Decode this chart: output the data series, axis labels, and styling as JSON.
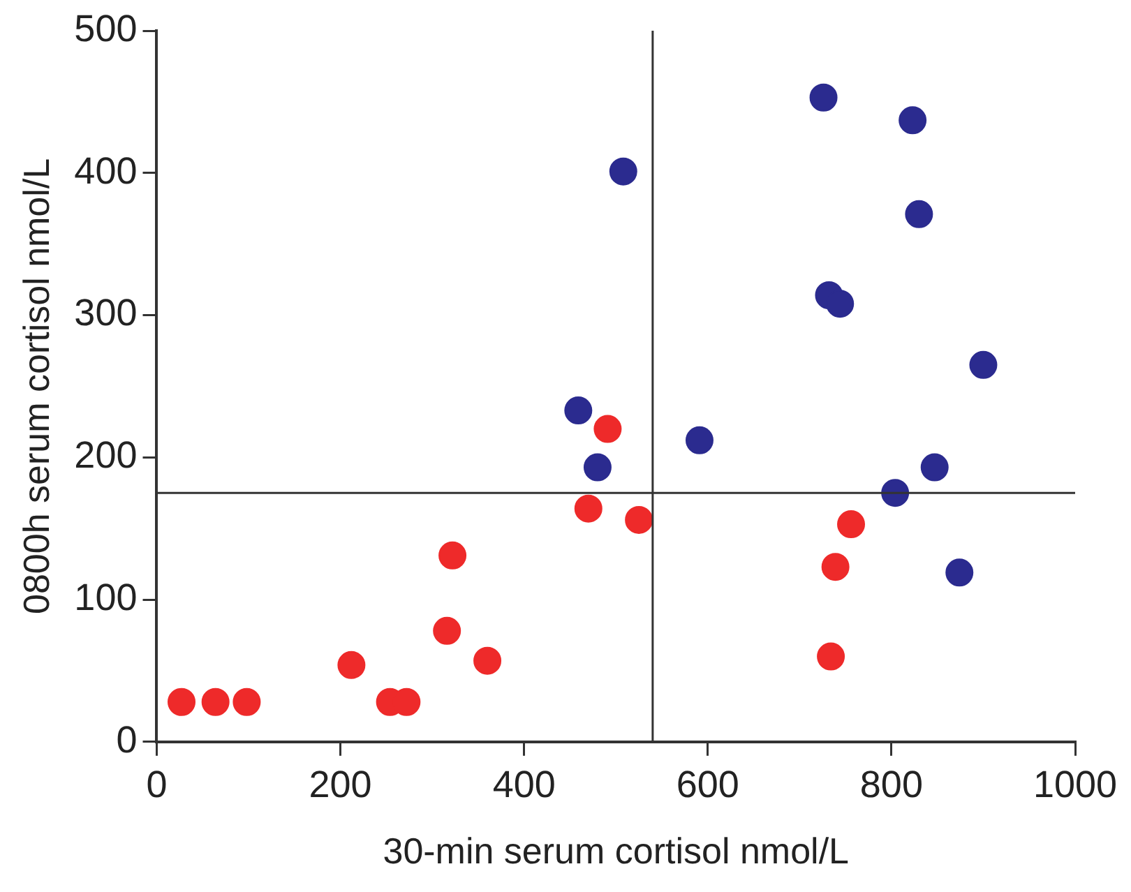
{
  "chart_data": {
    "type": "scatter",
    "xlabel": "30-min serum cortisol nmol/L",
    "ylabel": "0800h serum cortisol nmol/L",
    "xlim": [
      0,
      1000
    ],
    "xticks": [
      0,
      200,
      400,
      600,
      800,
      1000
    ],
    "ylim": [
      0,
      500
    ],
    "yticks": [
      0,
      100,
      200,
      300,
      400,
      500
    ],
    "grid": false,
    "legend": false,
    "marker": "circle",
    "series": [
      {
        "color": "#ee2a2a",
        "x": [
          27,
          64,
          98,
          212,
          254,
          272,
          360,
          316,
          322,
          470,
          525,
          491,
          756,
          739,
          734
        ],
        "values": [
          28,
          28,
          28,
          54,
          28,
          28,
          57,
          78,
          131,
          164,
          156,
          220,
          153,
          123,
          60
        ]
      },
      {
        "color": "#2b2b8f",
        "x": [
          508,
          459,
          480,
          591,
          726,
          823,
          830,
          732,
          744,
          900,
          847,
          804,
          874
        ],
        "values": [
          401,
          233,
          193,
          212,
          453,
          437,
          371,
          314,
          308,
          265,
          193,
          175,
          119
        ]
      }
    ],
    "ref_lines": [
      {
        "axis": "x",
        "value": 540,
        "color": "#333333"
      },
      {
        "axis": "y",
        "value": 175,
        "color": "#333333"
      }
    ]
  }
}
